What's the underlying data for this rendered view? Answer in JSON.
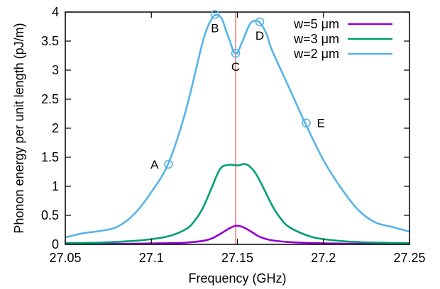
{
  "chart_data": {
    "type": "line",
    "xlabel": "Frequency (GHz)",
    "ylabel": "Phonon energy per unit length (pJ/m)",
    "xlim": [
      27.05,
      27.25
    ],
    "ylim": [
      0,
      4
    ],
    "x_ticks": [
      {
        "value": 27.05,
        "label": "27.05"
      },
      {
        "value": 27.1,
        "label": "27.1"
      },
      {
        "value": 27.15,
        "label": "27.15"
      },
      {
        "value": 27.2,
        "label": "27.2"
      },
      {
        "value": 27.25,
        "label": "27.25"
      }
    ],
    "y_ticks": [
      {
        "value": 0,
        "label": "0"
      },
      {
        "value": 0.5,
        "label": "0.5"
      },
      {
        "value": 1,
        "label": "1"
      },
      {
        "value": 1.5,
        "label": "1.5"
      },
      {
        "value": 2,
        "label": "2"
      },
      {
        "value": 2.5,
        "label": "2.5"
      },
      {
        "value": 3,
        "label": "3"
      },
      {
        "value": 3.5,
        "label": "3.5"
      },
      {
        "value": 4,
        "label": "4"
      }
    ],
    "grid": false,
    "legend_position": "top-right",
    "vertical_marker": {
      "x": 27.149,
      "color": "#f08080"
    },
    "series": [
      {
        "name": "w=5 μm",
        "color": "#9400d3",
        "x": [
          27.05,
          27.07,
          27.09,
          27.1,
          27.11,
          27.12,
          27.13,
          27.135,
          27.14,
          27.145,
          27.149,
          27.153,
          27.158,
          27.163,
          27.17,
          27.18,
          27.19,
          27.2,
          27.22,
          27.25
        ],
        "y": [
          0.005,
          0.008,
          0.012,
          0.016,
          0.02,
          0.03,
          0.06,
          0.1,
          0.18,
          0.27,
          0.32,
          0.3,
          0.22,
          0.13,
          0.07,
          0.04,
          0.025,
          0.018,
          0.01,
          0.005
        ]
      },
      {
        "name": "w=3 μm",
        "color": "#009e73",
        "x": [
          27.05,
          27.07,
          27.09,
          27.1,
          27.11,
          27.12,
          27.125,
          27.13,
          27.135,
          27.14,
          27.145,
          27.15,
          27.155,
          27.16,
          27.165,
          27.17,
          27.175,
          27.18,
          27.19,
          27.2,
          27.22,
          27.25
        ],
        "y": [
          0.02,
          0.03,
          0.06,
          0.09,
          0.14,
          0.26,
          0.4,
          0.63,
          0.97,
          1.3,
          1.37,
          1.36,
          1.38,
          1.25,
          0.98,
          0.68,
          0.45,
          0.3,
          0.16,
          0.09,
          0.04,
          0.02
        ]
      },
      {
        "name": "w=2 μm",
        "color": "#56b4e9",
        "x": [
          27.05,
          27.06,
          27.07,
          27.08,
          27.09,
          27.1,
          27.11,
          27.12,
          27.13,
          27.135,
          27.138,
          27.141,
          27.145,
          27.149,
          27.153,
          27.157,
          27.16,
          27.163,
          27.167,
          27.17,
          27.18,
          27.19,
          27.2,
          27.21,
          27.22,
          27.23,
          27.24,
          27.25
        ],
        "y": [
          0.12,
          0.19,
          0.23,
          0.3,
          0.52,
          0.9,
          1.4,
          2.3,
          3.5,
          3.88,
          3.95,
          3.88,
          3.55,
          3.28,
          3.5,
          3.78,
          3.85,
          3.82,
          3.62,
          3.35,
          2.7,
          2.05,
          1.45,
          0.98,
          0.6,
          0.38,
          0.3,
          0.22
        ]
      }
    ],
    "annotations": [
      {
        "label": "A",
        "x": 27.11,
        "y": 1.38,
        "side": "left"
      },
      {
        "label": "B",
        "x": 27.137,
        "y": 3.96,
        "side": "below"
      },
      {
        "label": "C",
        "x": 27.149,
        "y": 3.29,
        "side": "below"
      },
      {
        "label": "D",
        "x": 27.163,
        "y": 3.83,
        "side": "below"
      },
      {
        "label": "E",
        "x": 27.19,
        "y": 2.09,
        "side": "right"
      }
    ]
  }
}
